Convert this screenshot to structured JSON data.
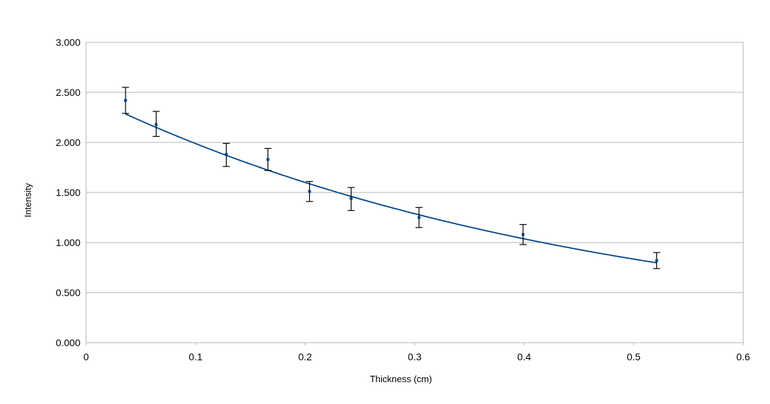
{
  "chart_data": {
    "type": "scatter",
    "title": "",
    "xlabel": "Thickness (cm)",
    "ylabel": "Intensity",
    "xlim": [
      0,
      0.6
    ],
    "ylim": [
      0,
      3.0
    ],
    "x_ticks": [
      "0",
      "0.1",
      "0.2",
      "0.3",
      "0.4",
      "0.5",
      "0.6"
    ],
    "x_tick_values": [
      0,
      0.1,
      0.2,
      0.3,
      0.4,
      0.5,
      0.6
    ],
    "y_ticks": [
      "0.000",
      "0.500",
      "1.000",
      "1.500",
      "2.000",
      "2.500",
      "3.000"
    ],
    "y_tick_values": [
      0,
      0.5,
      1.0,
      1.5,
      2.0,
      2.5,
      3.0
    ],
    "grid": "horizontal",
    "legend": "none",
    "series": [
      {
        "points": [
          {
            "x": 0.036,
            "y": 2.42,
            "err_low": 2.29,
            "err_high": 2.55
          },
          {
            "x": 0.064,
            "y": 2.18,
            "err_low": 2.06,
            "err_high": 2.31
          },
          {
            "x": 0.128,
            "y": 1.88,
            "err_low": 1.76,
            "err_high": 1.99
          },
          {
            "x": 0.166,
            "y": 1.83,
            "err_low": 1.72,
            "err_high": 1.94
          },
          {
            "x": 0.204,
            "y": 1.51,
            "err_low": 1.41,
            "err_high": 1.61
          },
          {
            "x": 0.242,
            "y": 1.44,
            "err_low": 1.32,
            "err_high": 1.55
          },
          {
            "x": 0.304,
            "y": 1.25,
            "err_low": 1.15,
            "err_high": 1.35
          },
          {
            "x": 0.399,
            "y": 1.08,
            "err_low": 0.98,
            "err_high": 1.18
          },
          {
            "x": 0.521,
            "y": 0.82,
            "err_low": 0.74,
            "err_high": 0.9
          }
        ]
      }
    ],
    "trendline": {
      "type": "exponential",
      "x_start": 0.036,
      "x_end": 0.521,
      "a": 2.47,
      "b": -2.17
    },
    "colors": {
      "point": "#004586",
      "trendline": "#004586",
      "error_bar": "#000000",
      "grid": "#b3b3b3",
      "axis": "#b3b3b3"
    }
  }
}
